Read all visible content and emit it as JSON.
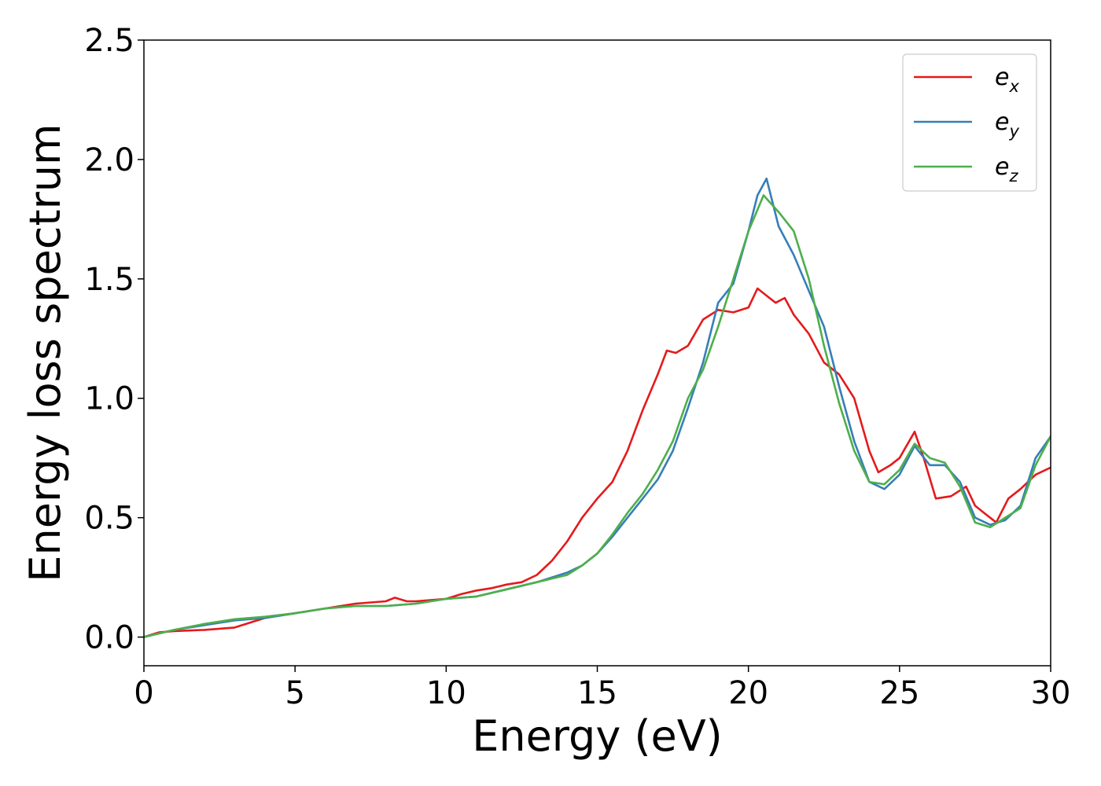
{
  "chart_data": {
    "type": "line",
    "title": "",
    "xlabel": "Energy (eV)",
    "ylabel": "Energy loss spectrum",
    "xlim": [
      0,
      30
    ],
    "ylim": [
      -0.12,
      2.5
    ],
    "x_ticks": [
      0,
      5,
      10,
      15,
      20,
      25,
      30
    ],
    "x_tick_labels": [
      "0",
      "5",
      "10",
      "15",
      "20",
      "25",
      "30"
    ],
    "y_ticks": [
      0.0,
      0.5,
      1.0,
      1.5,
      2.0,
      2.5
    ],
    "y_tick_labels": [
      "0.0",
      "0.5",
      "1.0",
      "1.5",
      "2.0",
      "2.5"
    ],
    "grid": false,
    "legend_position": "top-right",
    "series": [
      {
        "name": "e_x",
        "label_base": "e",
        "label_sub": "x",
        "color": "#e41a1c",
        "points": [
          [
            0,
            0
          ],
          [
            0.5,
            0.02
          ],
          [
            1,
            0.025
          ],
          [
            2,
            0.03
          ],
          [
            3,
            0.04
          ],
          [
            4,
            0.08
          ],
          [
            5,
            0.1
          ],
          [
            6,
            0.12
          ],
          [
            7,
            0.14
          ],
          [
            8,
            0.15
          ],
          [
            8.3,
            0.165
          ],
          [
            8.7,
            0.15
          ],
          [
            9,
            0.15
          ],
          [
            10,
            0.16
          ],
          [
            10.5,
            0.18
          ],
          [
            11,
            0.195
          ],
          [
            11.5,
            0.205
          ],
          [
            12,
            0.22
          ],
          [
            12.5,
            0.23
          ],
          [
            13,
            0.26
          ],
          [
            13.5,
            0.32
          ],
          [
            14,
            0.4
          ],
          [
            14.5,
            0.5
          ],
          [
            15,
            0.58
          ],
          [
            15.5,
            0.65
          ],
          [
            16,
            0.78
          ],
          [
            16.5,
            0.95
          ],
          [
            17,
            1.1
          ],
          [
            17.3,
            1.2
          ],
          [
            17.6,
            1.19
          ],
          [
            18,
            1.22
          ],
          [
            18.5,
            1.33
          ],
          [
            19,
            1.37
          ],
          [
            19.5,
            1.36
          ],
          [
            20,
            1.38
          ],
          [
            20.3,
            1.46
          ],
          [
            20.6,
            1.43
          ],
          [
            20.9,
            1.4
          ],
          [
            21.2,
            1.42
          ],
          [
            21.5,
            1.35
          ],
          [
            22,
            1.27
          ],
          [
            22.5,
            1.15
          ],
          [
            23,
            1.1
          ],
          [
            23.5,
            1.0
          ],
          [
            24,
            0.78
          ],
          [
            24.3,
            0.69
          ],
          [
            24.7,
            0.72
          ],
          [
            25,
            0.75
          ],
          [
            25.5,
            0.86
          ],
          [
            25.8,
            0.75
          ],
          [
            26.2,
            0.58
          ],
          [
            26.7,
            0.59
          ],
          [
            27.2,
            0.63
          ],
          [
            27.5,
            0.55
          ],
          [
            27.8,
            0.52
          ],
          [
            28.2,
            0.48
          ],
          [
            28.6,
            0.58
          ],
          [
            29,
            0.62
          ],
          [
            29.5,
            0.68
          ],
          [
            30,
            0.71
          ]
        ]
      },
      {
        "name": "e_y",
        "label_base": "e",
        "label_sub": "y",
        "color": "#377eb8",
        "points": [
          [
            0,
            0
          ],
          [
            1,
            0.03
          ],
          [
            2,
            0.05
          ],
          [
            3,
            0.07
          ],
          [
            4,
            0.08
          ],
          [
            5,
            0.1
          ],
          [
            6,
            0.12
          ],
          [
            7,
            0.13
          ],
          [
            8,
            0.13
          ],
          [
            9,
            0.14
          ],
          [
            10,
            0.16
          ],
          [
            11,
            0.17
          ],
          [
            12,
            0.2
          ],
          [
            13,
            0.23
          ],
          [
            14,
            0.27
          ],
          [
            14.5,
            0.3
          ],
          [
            15,
            0.35
          ],
          [
            15.5,
            0.42
          ],
          [
            16,
            0.5
          ],
          [
            16.5,
            0.58
          ],
          [
            17,
            0.66
          ],
          [
            17.5,
            0.78
          ],
          [
            18,
            0.96
          ],
          [
            18.5,
            1.15
          ],
          [
            19,
            1.4
          ],
          [
            19.5,
            1.48
          ],
          [
            20,
            1.7
          ],
          [
            20.3,
            1.85
          ],
          [
            20.6,
            1.92
          ],
          [
            21,
            1.72
          ],
          [
            21.5,
            1.6
          ],
          [
            22,
            1.45
          ],
          [
            22.5,
            1.3
          ],
          [
            23,
            1.05
          ],
          [
            23.5,
            0.82
          ],
          [
            24,
            0.65
          ],
          [
            24.5,
            0.62
          ],
          [
            25,
            0.68
          ],
          [
            25.5,
            0.8
          ],
          [
            26,
            0.72
          ],
          [
            26.5,
            0.72
          ],
          [
            27,
            0.65
          ],
          [
            27.5,
            0.5
          ],
          [
            28,
            0.47
          ],
          [
            28.5,
            0.49
          ],
          [
            29,
            0.55
          ],
          [
            29.5,
            0.75
          ],
          [
            30,
            0.84
          ]
        ]
      },
      {
        "name": "e_z",
        "label_base": "e",
        "label_sub": "z",
        "color": "#4daf4a",
        "points": [
          [
            0,
            0
          ],
          [
            1,
            0.03
          ],
          [
            2,
            0.055
          ],
          [
            3,
            0.075
          ],
          [
            4,
            0.085
          ],
          [
            5,
            0.1
          ],
          [
            6,
            0.12
          ],
          [
            7,
            0.13
          ],
          [
            8,
            0.13
          ],
          [
            9,
            0.14
          ],
          [
            10,
            0.16
          ],
          [
            11,
            0.17
          ],
          [
            12,
            0.2
          ],
          [
            13,
            0.23
          ],
          [
            14,
            0.26
          ],
          [
            14.5,
            0.3
          ],
          [
            15,
            0.35
          ],
          [
            15.5,
            0.43
          ],
          [
            16,
            0.52
          ],
          [
            16.5,
            0.6
          ],
          [
            17,
            0.7
          ],
          [
            17.5,
            0.82
          ],
          [
            18,
            1.0
          ],
          [
            18.5,
            1.12
          ],
          [
            19,
            1.3
          ],
          [
            19.5,
            1.5
          ],
          [
            20,
            1.7
          ],
          [
            20.5,
            1.85
          ],
          [
            21,
            1.78
          ],
          [
            21.5,
            1.7
          ],
          [
            22,
            1.5
          ],
          [
            22.5,
            1.22
          ],
          [
            23,
            0.98
          ],
          [
            23.5,
            0.78
          ],
          [
            24,
            0.65
          ],
          [
            24.5,
            0.64
          ],
          [
            25,
            0.7
          ],
          [
            25.5,
            0.81
          ],
          [
            26,
            0.75
          ],
          [
            26.5,
            0.73
          ],
          [
            27,
            0.63
          ],
          [
            27.5,
            0.48
          ],
          [
            28,
            0.46
          ],
          [
            28.5,
            0.5
          ],
          [
            29,
            0.54
          ],
          [
            29.5,
            0.72
          ],
          [
            30,
            0.84
          ]
        ]
      }
    ]
  }
}
